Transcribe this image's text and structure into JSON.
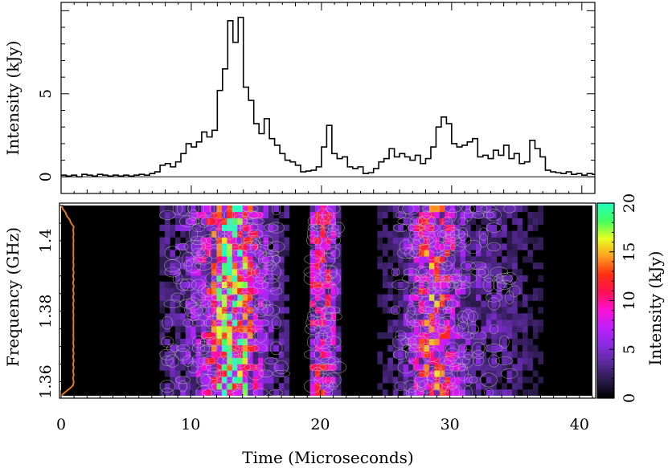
{
  "chart_data": [
    {
      "type": "line",
      "panel": "top",
      "ylabel": "Intensity (kJy)",
      "xlim": [
        0,
        41
      ],
      "ylim": [
        -1,
        10.5
      ],
      "yticks": [
        "0",
        "5"
      ],
      "ytick_values": [
        0,
        5
      ],
      "step_width_us": 0.4,
      "x": [
        0,
        0.4,
        0.8,
        1.2,
        1.6,
        2.0,
        2.4,
        2.8,
        3.2,
        3.6,
        4.0,
        4.4,
        4.8,
        5.2,
        5.6,
        6.0,
        6.4,
        6.8,
        7.2,
        7.6,
        8.0,
        8.4,
        8.8,
        9.2,
        9.6,
        10.0,
        10.4,
        10.8,
        11.2,
        11.6,
        12.0,
        12.4,
        12.8,
        13.2,
        13.6,
        14.0,
        14.4,
        14.8,
        15.2,
        15.6,
        16.0,
        16.4,
        16.8,
        17.2,
        17.6,
        18.0,
        18.4,
        18.8,
        19.2,
        19.6,
        20.0,
        20.4,
        20.8,
        21.2,
        21.6,
        22.0,
        22.4,
        22.8,
        23.2,
        23.6,
        24.0,
        24.4,
        24.8,
        25.2,
        25.6,
        26.0,
        26.4,
        26.8,
        27.2,
        27.6,
        28.0,
        28.4,
        28.8,
        29.2,
        29.6,
        30.0,
        30.4,
        30.8,
        31.2,
        31.6,
        32.0,
        32.4,
        32.8,
        33.2,
        33.6,
        34.0,
        34.4,
        34.8,
        35.2,
        35.6,
        36.0,
        36.4,
        36.8,
        37.2,
        37.6,
        38.0,
        38.4,
        38.8,
        39.2,
        39.6,
        40.0,
        40.4,
        40.8
      ],
      "values": [
        0.1,
        0.05,
        0.1,
        0.0,
        0.15,
        0.1,
        0.05,
        0.15,
        0.1,
        0.05,
        0.1,
        0.05,
        0.1,
        0.05,
        0.1,
        0.15,
        0.1,
        0.2,
        0.3,
        0.7,
        0.8,
        0.6,
        0.9,
        1.4,
        2.0,
        1.8,
        2.1,
        2.7,
        2.4,
        2.8,
        5.2,
        6.5,
        9.4,
        8.1,
        9.6,
        5.4,
        4.6,
        3.2,
        2.6,
        3.5,
        2.3,
        1.9,
        1.4,
        1.0,
        0.9,
        0.7,
        0.3,
        0.35,
        0.4,
        0.6,
        1.8,
        3.1,
        1.4,
        1.1,
        1.2,
        0.6,
        0.5,
        0.6,
        0.2,
        0.25,
        0.5,
        0.9,
        1.1,
        1.7,
        1.2,
        1.4,
        1.2,
        1.0,
        1.3,
        0.8,
        1.1,
        1.8,
        3.0,
        3.6,
        3.2,
        2.0,
        1.8,
        1.9,
        2.1,
        2.3,
        1.2,
        1.3,
        1.1,
        1.6,
        1.3,
        1.9,
        1.1,
        1.4,
        0.8,
        0.9,
        2.2,
        1.7,
        1.2,
        0.4,
        0.3,
        0.25,
        0.2,
        0.3,
        0.15,
        0.2,
        0.1,
        0.2,
        0.15
      ]
    },
    {
      "type": "heatmap",
      "panel": "bottom",
      "xlabel": "Time (Microseconds)",
      "ylabel": "Frequency (GHz)",
      "xlim": [
        0,
        41
      ],
      "ylim": [
        1.356,
        1.41
      ],
      "xticks": [
        "0",
        "10",
        "20",
        "30",
        "40"
      ],
      "xtick_values": [
        0,
        10,
        20,
        30,
        40
      ],
      "yticks": [
        "1.36",
        "1.38",
        "1.4"
      ],
      "ytick_values": [
        1.36,
        1.38,
        1.4
      ],
      "grid": false,
      "colorbar": {
        "label": "Intensity (kJy)",
        "range": [
          0,
          20
        ],
        "ticks": [
          "0",
          "5",
          "10",
          "15",
          "20"
        ],
        "tick_values": [
          0,
          5,
          10,
          15,
          20
        ],
        "colors": [
          "#000000",
          "#2a1a4a",
          "#5a2a9a",
          "#8a2ae0",
          "#c020ff",
          "#ff10d0",
          "#ff1050",
          "#ff3010",
          "#ffa020",
          "#e8ff20",
          "#40ff60",
          "#20ffc0"
        ]
      },
      "bursts": [
        {
          "t_start": 7.5,
          "t_end": 17.5,
          "peak_t": 13.0,
          "strength": 1.0
        },
        {
          "t_start": 18.8,
          "t_end": 21.2,
          "peak_t": 19.8,
          "strength": 0.55
        },
        {
          "t_start": 24.0,
          "t_end": 36.8,
          "peak_t": 28.5,
          "strength": 0.7
        }
      ],
      "bandpass_color": "#e07820"
    }
  ]
}
